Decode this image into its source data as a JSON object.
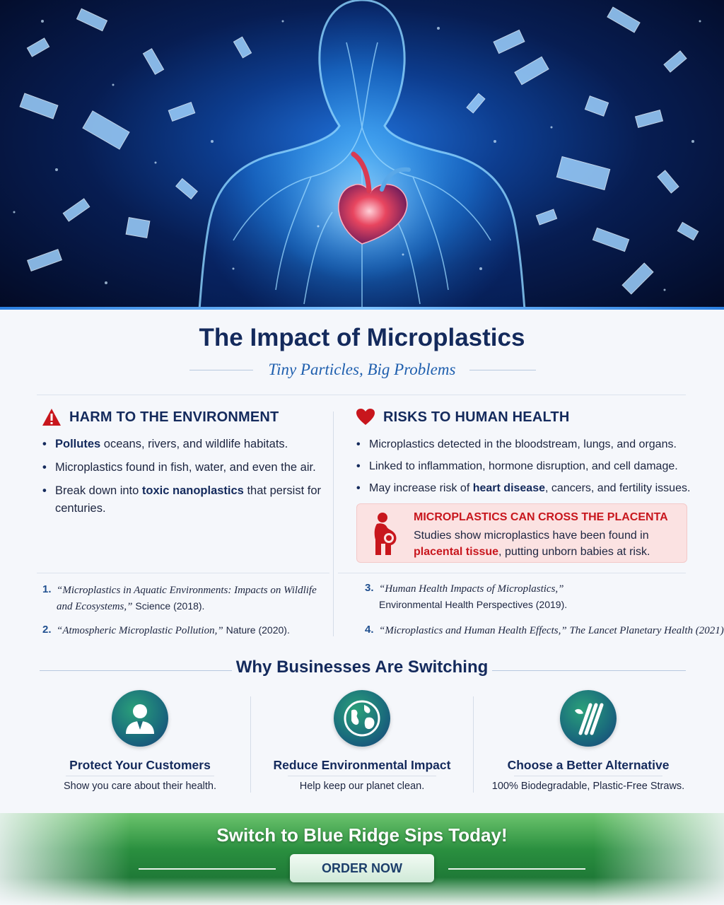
{
  "header": {
    "title": "The Impact of Microplastics",
    "subtitle": "Tiny Particles, Big Problems"
  },
  "environment": {
    "heading": "HARM TO THE ENVIRONMENT",
    "icon": "warning-triangle-icon",
    "bullets": [
      {
        "bold": "Pollutes",
        "text": " oceans, rivers, and wildlife habitats."
      },
      {
        "text": "Microplastics found in fish, water, and even the air."
      },
      {
        "pre": "Break down into ",
        "bold": "toxic nanoplastics",
        "post": " that persist for centuries."
      }
    ]
  },
  "health": {
    "heading": "RISKS TO HUMAN HEALTH",
    "icon": "heart-icon",
    "bullets": [
      {
        "text": "Microplastics detected in the bloodstream, lungs, and organs."
      },
      {
        "text": "Linked to inflammation, hormone disruption, and cell damage."
      },
      {
        "pre": "May increase risk of ",
        "bold": "heart disease",
        "post": ", cancers, and fertility issues."
      }
    ],
    "callout": {
      "title": "MICROPLASTICS CAN CROSS THE PLACENTA",
      "body_pre": "Studies show microplastics have been found in",
      "body_red": "placental tissue",
      "body_post": ", putting unborn babies at risk.",
      "icon": "pregnant-woman-icon"
    }
  },
  "references": [
    {
      "num": "1.",
      "title": "“Microplastics in Aquatic Environments: Impacts on Wildlife and Ecosystems,”",
      "source": " Science (2018)."
    },
    {
      "num": "2.",
      "title": "“Atmospheric Microplastic Pollution,”",
      "source": " Nature (2020)."
    },
    {
      "num": "3.",
      "title": "“Human Health Impacts of Microplastics,”",
      "source": "Environmental Health Perspectives (2019)."
    },
    {
      "num": "4.",
      "title": "“Microplastics and Human Health Effects,”",
      "source": " The Lancet Planetary Health (2021)."
    }
  ],
  "why": {
    "title": "Why Businesses Are Switching",
    "features": [
      {
        "title": "Protect Your Customers",
        "subtitle": "Show you care about their health.",
        "icon": "person-icon"
      },
      {
        "title": "Reduce Environmental Impact",
        "subtitle": "Help keep our planet clean.",
        "icon": "globe-icon"
      },
      {
        "title": "Choose a Better Alternative",
        "subtitle": "100% Biodegradable, Plastic-Free Straws.",
        "icon": "straws-icon"
      }
    ]
  },
  "cta": {
    "title": "Switch to Blue Ridge Sips Today!",
    "button": "ORDER NOW"
  },
  "colors": {
    "navy": "#142a5c",
    "accent_blue": "#1f5fae",
    "alert_red": "#c8161d",
    "cta_green": "#2a8f3f"
  }
}
